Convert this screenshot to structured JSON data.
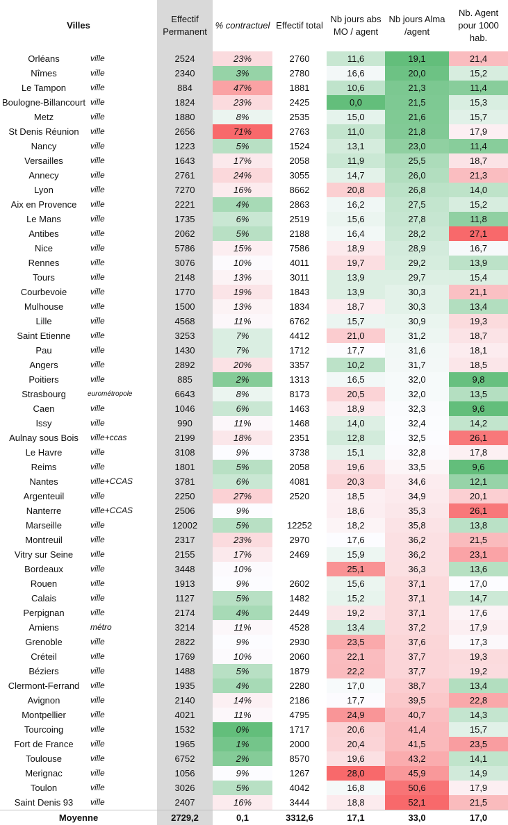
{
  "headers": {
    "villes": "Villes",
    "effectif_permanent": "Effectif Permanent",
    "pct_contractuel": "% contractuel",
    "effectif_total": "Effectif total",
    "abs_mo": "Nb jours abs MO / agent",
    "alma": "Nb jours Alma /agent",
    "agents_1000": "Nb. Agent pour 1000 hab."
  },
  "rows": [
    {
      "ville": "Orléans",
      "type": "ville",
      "perm": "2524",
      "pct": "23%",
      "total": "2760",
      "abs": "11,6",
      "alma": "19,1",
      "hab": "21,4"
    },
    {
      "ville": "Nîmes",
      "type": "ville",
      "perm": "2340",
      "pct": "3%",
      "total": "2780",
      "abs": "16,6",
      "alma": "20,0",
      "hab": "15,2"
    },
    {
      "ville": "Le Tampon",
      "type": "ville",
      "perm": "884",
      "pct": "47%",
      "total": "1881",
      "abs": "10,6",
      "alma": "21,3",
      "hab": "11,4"
    },
    {
      "ville": "Boulogne-Billancourt",
      "type": "ville",
      "perm": "1824",
      "pct": "23%",
      "total": "2425",
      "abs": "0,0",
      "alma": "21,5",
      "hab": "15,3"
    },
    {
      "ville": "Metz",
      "type": "ville",
      "perm": "1880",
      "pct": "8%",
      "total": "2535",
      "abs": "15,0",
      "alma": "21,6",
      "hab": "15,7"
    },
    {
      "ville": "St Denis Réunion",
      "type": "ville",
      "perm": "2656",
      "pct": "71%",
      "total": "2763",
      "abs": "11,0",
      "alma": "21,8",
      "hab": "17,9"
    },
    {
      "ville": "Nancy",
      "type": "ville",
      "perm": "1223",
      "pct": "5%",
      "total": "1524",
      "abs": "13,1",
      "alma": "23,0",
      "hab": "11,4"
    },
    {
      "ville": "Versailles",
      "type": "ville",
      "perm": "1643",
      "pct": "17%",
      "total": "2058",
      "abs": "11,9",
      "alma": "25,5",
      "hab": "18,7"
    },
    {
      "ville": "Annecy",
      "type": "ville",
      "perm": "2761",
      "pct": "24%",
      "total": "3055",
      "abs": "14,7",
      "alma": "26,0",
      "hab": "21,3"
    },
    {
      "ville": "Lyon",
      "type": "ville",
      "perm": "7270",
      "pct": "16%",
      "total": "8662",
      "abs": "20,8",
      "alma": "26,8",
      "hab": "14,0"
    },
    {
      "ville": "Aix en Provence",
      "type": "ville",
      "perm": "2221",
      "pct": "4%",
      "total": "2863",
      "abs": "16,2",
      "alma": "27,5",
      "hab": "15,2"
    },
    {
      "ville": "Le Mans",
      "type": "ville",
      "perm": "1735",
      "pct": "6%",
      "total": "2519",
      "abs": "15,6",
      "alma": "27,8",
      "hab": "11,8"
    },
    {
      "ville": "Antibes",
      "type": "ville",
      "perm": "2062",
      "pct": "5%",
      "total": "2188",
      "abs": "16,4",
      "alma": "28,2",
      "hab": "27,1"
    },
    {
      "ville": "Nice",
      "type": "ville",
      "perm": "5786",
      "pct": "15%",
      "total": "7586",
      "abs": "18,9",
      "alma": "28,9",
      "hab": "16,7"
    },
    {
      "ville": "Rennes",
      "type": "ville",
      "perm": "3076",
      "pct": "10%",
      "total": "4011",
      "abs": "19,7",
      "alma": "29,2",
      "hab": "13,9"
    },
    {
      "ville": "Tours",
      "type": "ville",
      "perm": "2148",
      "pct": "13%",
      "total": "3011",
      "abs": "13,9",
      "alma": "29,7",
      "hab": "15,4"
    },
    {
      "ville": "Courbevoie",
      "type": "ville",
      "perm": "1770",
      "pct": "19%",
      "total": "1843",
      "abs": "13,9",
      "alma": "30,3",
      "hab": "21,1"
    },
    {
      "ville": "Mulhouse",
      "type": "ville",
      "perm": "1500",
      "pct": "13%",
      "total": "1834",
      "abs": "18,7",
      "alma": "30,3",
      "hab": "13,4"
    },
    {
      "ville": "Lille",
      "type": "ville",
      "perm": "4568",
      "pct": "11%",
      "total": "6762",
      "abs": "15,7",
      "alma": "30,9",
      "hab": "19,3"
    },
    {
      "ville": "Saint Etienne",
      "type": "ville",
      "perm": "3253",
      "pct": "7%",
      "total": "4412",
      "abs": "21,0",
      "alma": "31,2",
      "hab": "18,7"
    },
    {
      "ville": "Pau",
      "type": "ville",
      "perm": "1430",
      "pct": "7%",
      "total": "1712",
      "abs": "17,7",
      "alma": "31,6",
      "hab": "18,1"
    },
    {
      "ville": "Angers",
      "type": "ville",
      "perm": "2892",
      "pct": "20%",
      "total": "3357",
      "abs": "10,2",
      "alma": "31,7",
      "hab": "18,5"
    },
    {
      "ville": "Poitiers",
      "type": "ville",
      "perm": "885",
      "pct": "2%",
      "total": "1313",
      "abs": "16,5",
      "alma": "32,0",
      "hab": "9,8"
    },
    {
      "ville": "Strasbourg",
      "type": "eurométropole",
      "perm": "6643",
      "pct": "8%",
      "total": "8173",
      "abs": "20,5",
      "alma": "32,0",
      "hab": "13,5"
    },
    {
      "ville": "Caen",
      "type": "ville",
      "perm": "1046",
      "pct": "6%",
      "total": "1463",
      "abs": "18,9",
      "alma": "32,3",
      "hab": "9,6"
    },
    {
      "ville": "Issy",
      "type": "ville",
      "perm": "990",
      "pct": "11%",
      "total": "1468",
      "abs": "14,0",
      "alma": "32,4",
      "hab": "14,2"
    },
    {
      "ville": "Aulnay sous Bois",
      "type": "ville+ccas",
      "perm": "2199",
      "pct": "18%",
      "total": "2351",
      "abs": "12,8",
      "alma": "32,5",
      "hab": "26,1"
    },
    {
      "ville": "Le Havre",
      "type": "ville",
      "perm": "3108",
      "pct": "9%",
      "total": "3738",
      "abs": "15,1",
      "alma": "32,8",
      "hab": "17,8"
    },
    {
      "ville": "Reims",
      "type": "ville",
      "perm": "1801",
      "pct": "5%",
      "total": "2058",
      "abs": "19,6",
      "alma": "33,5",
      "hab": "9,6"
    },
    {
      "ville": "Nantes",
      "type": "ville+CCAS",
      "perm": "3781",
      "pct": "6%",
      "total": "4081",
      "abs": "20,3",
      "alma": "34,6",
      "hab": "12,1"
    },
    {
      "ville": "Argenteuil",
      "type": "ville",
      "perm": "2250",
      "pct": "27%",
      "total": "2520",
      "abs": "18,5",
      "alma": "34,9",
      "hab": "20,1"
    },
    {
      "ville": "Nanterre",
      "type": "ville+CCAS",
      "perm": "2506",
      "pct": "9%",
      "total": "",
      "abs": "18,6",
      "alma": "35,3",
      "hab": "26,1"
    },
    {
      "ville": "Marseille",
      "type": "ville",
      "perm": "12002",
      "pct": "5%",
      "total": "12252",
      "abs": "18,2",
      "alma": "35,8",
      "hab": "13,8"
    },
    {
      "ville": "Montreuil",
      "type": "ville",
      "perm": "2317",
      "pct": "23%",
      "total": "2970",
      "abs": "17,6",
      "alma": "36,2",
      "hab": "21,5"
    },
    {
      "ville": "Vitry sur Seine",
      "type": "ville",
      "perm": "2155",
      "pct": "17%",
      "total": "2469",
      "abs": "15,9",
      "alma": "36,2",
      "hab": "23,1"
    },
    {
      "ville": "Bordeaux",
      "type": "ville",
      "perm": "3448",
      "pct": "10%",
      "total": "",
      "abs": "25,1",
      "alma": "36,3",
      "hab": "13,6"
    },
    {
      "ville": "Rouen",
      "type": "ville",
      "perm": "1913",
      "pct": "9%",
      "total": "2602",
      "abs": "15,6",
      "alma": "37,1",
      "hab": "17,0"
    },
    {
      "ville": "Calais",
      "type": "ville",
      "perm": "1127",
      "pct": "5%",
      "total": "1482",
      "abs": "15,2",
      "alma": "37,1",
      "hab": "14,7"
    },
    {
      "ville": "Perpignan",
      "type": "ville",
      "perm": "2174",
      "pct": "4%",
      "total": "2449",
      "abs": "19,2",
      "alma": "37,1",
      "hab": "17,6"
    },
    {
      "ville": "Amiens",
      "type": "métro",
      "perm": "3214",
      "pct": "11%",
      "total": "4528",
      "abs": "13,4",
      "alma": "37,2",
      "hab": "17,9"
    },
    {
      "ville": "Grenoble",
      "type": "ville",
      "perm": "2822",
      "pct": "9%",
      "total": "2930",
      "abs": "23,5",
      "alma": "37,6",
      "hab": "17,3"
    },
    {
      "ville": "Créteil",
      "type": "ville",
      "perm": "1769",
      "pct": "10%",
      "total": "2060",
      "abs": "22,1",
      "alma": "37,7",
      "hab": "19,3"
    },
    {
      "ville": "Béziers",
      "type": "ville",
      "perm": "1488",
      "pct": "5%",
      "total": "1879",
      "abs": "22,2",
      "alma": "37,7",
      "hab": "19,2"
    },
    {
      "ville": "Clermont-Ferrand",
      "type": "ville",
      "perm": "1935",
      "pct": "4%",
      "total": "2280",
      "abs": "17,0",
      "alma": "38,7",
      "hab": "13,4"
    },
    {
      "ville": "Avignon",
      "type": "ville",
      "perm": "2140",
      "pct": "14%",
      "total": "2186",
      "abs": "17,7",
      "alma": "39,5",
      "hab": "22,8"
    },
    {
      "ville": "Montpellier",
      "type": "ville",
      "perm": "4021",
      "pct": "11%",
      "total": "4795",
      "abs": "24,9",
      "alma": "40,7",
      "hab": "14,3"
    },
    {
      "ville": "Tourcoing",
      "type": "ville",
      "perm": "1532",
      "pct": "0%",
      "total": "1717",
      "abs": "20,6",
      "alma": "41,4",
      "hab": "15,7"
    },
    {
      "ville": "Fort de France",
      "type": "ville",
      "perm": "1965",
      "pct": "1%",
      "total": "2000",
      "abs": "20,4",
      "alma": "41,5",
      "hab": "23,5"
    },
    {
      "ville": "Toulouse",
      "type": "ville",
      "perm": "6752",
      "pct": "2%",
      "total": "8570",
      "abs": "19,6",
      "alma": "43,2",
      "hab": "14,1"
    },
    {
      "ville": "Merignac",
      "type": "ville",
      "perm": "1056",
      "pct": "9%",
      "total": "1267",
      "abs": "28,0",
      "alma": "45,9",
      "hab": "14,9"
    },
    {
      "ville": "Toulon",
      "type": "ville",
      "perm": "3026",
      "pct": "5%",
      "total": "4042",
      "abs": "16,8",
      "alma": "50,6",
      "hab": "17,9"
    },
    {
      "ville": "Saint Denis 93",
      "type": "ville",
      "perm": "2407",
      "pct": "16%",
      "total": "3444",
      "abs": "18,8",
      "alma": "52,1",
      "hab": "21,5"
    }
  ],
  "average": {
    "label": "Moyenne",
    "perm": "2729,2",
    "pct": "0,1",
    "total": "3312,6",
    "abs": "17,1",
    "alma": "33,0",
    "hab": "17,0"
  }
}
